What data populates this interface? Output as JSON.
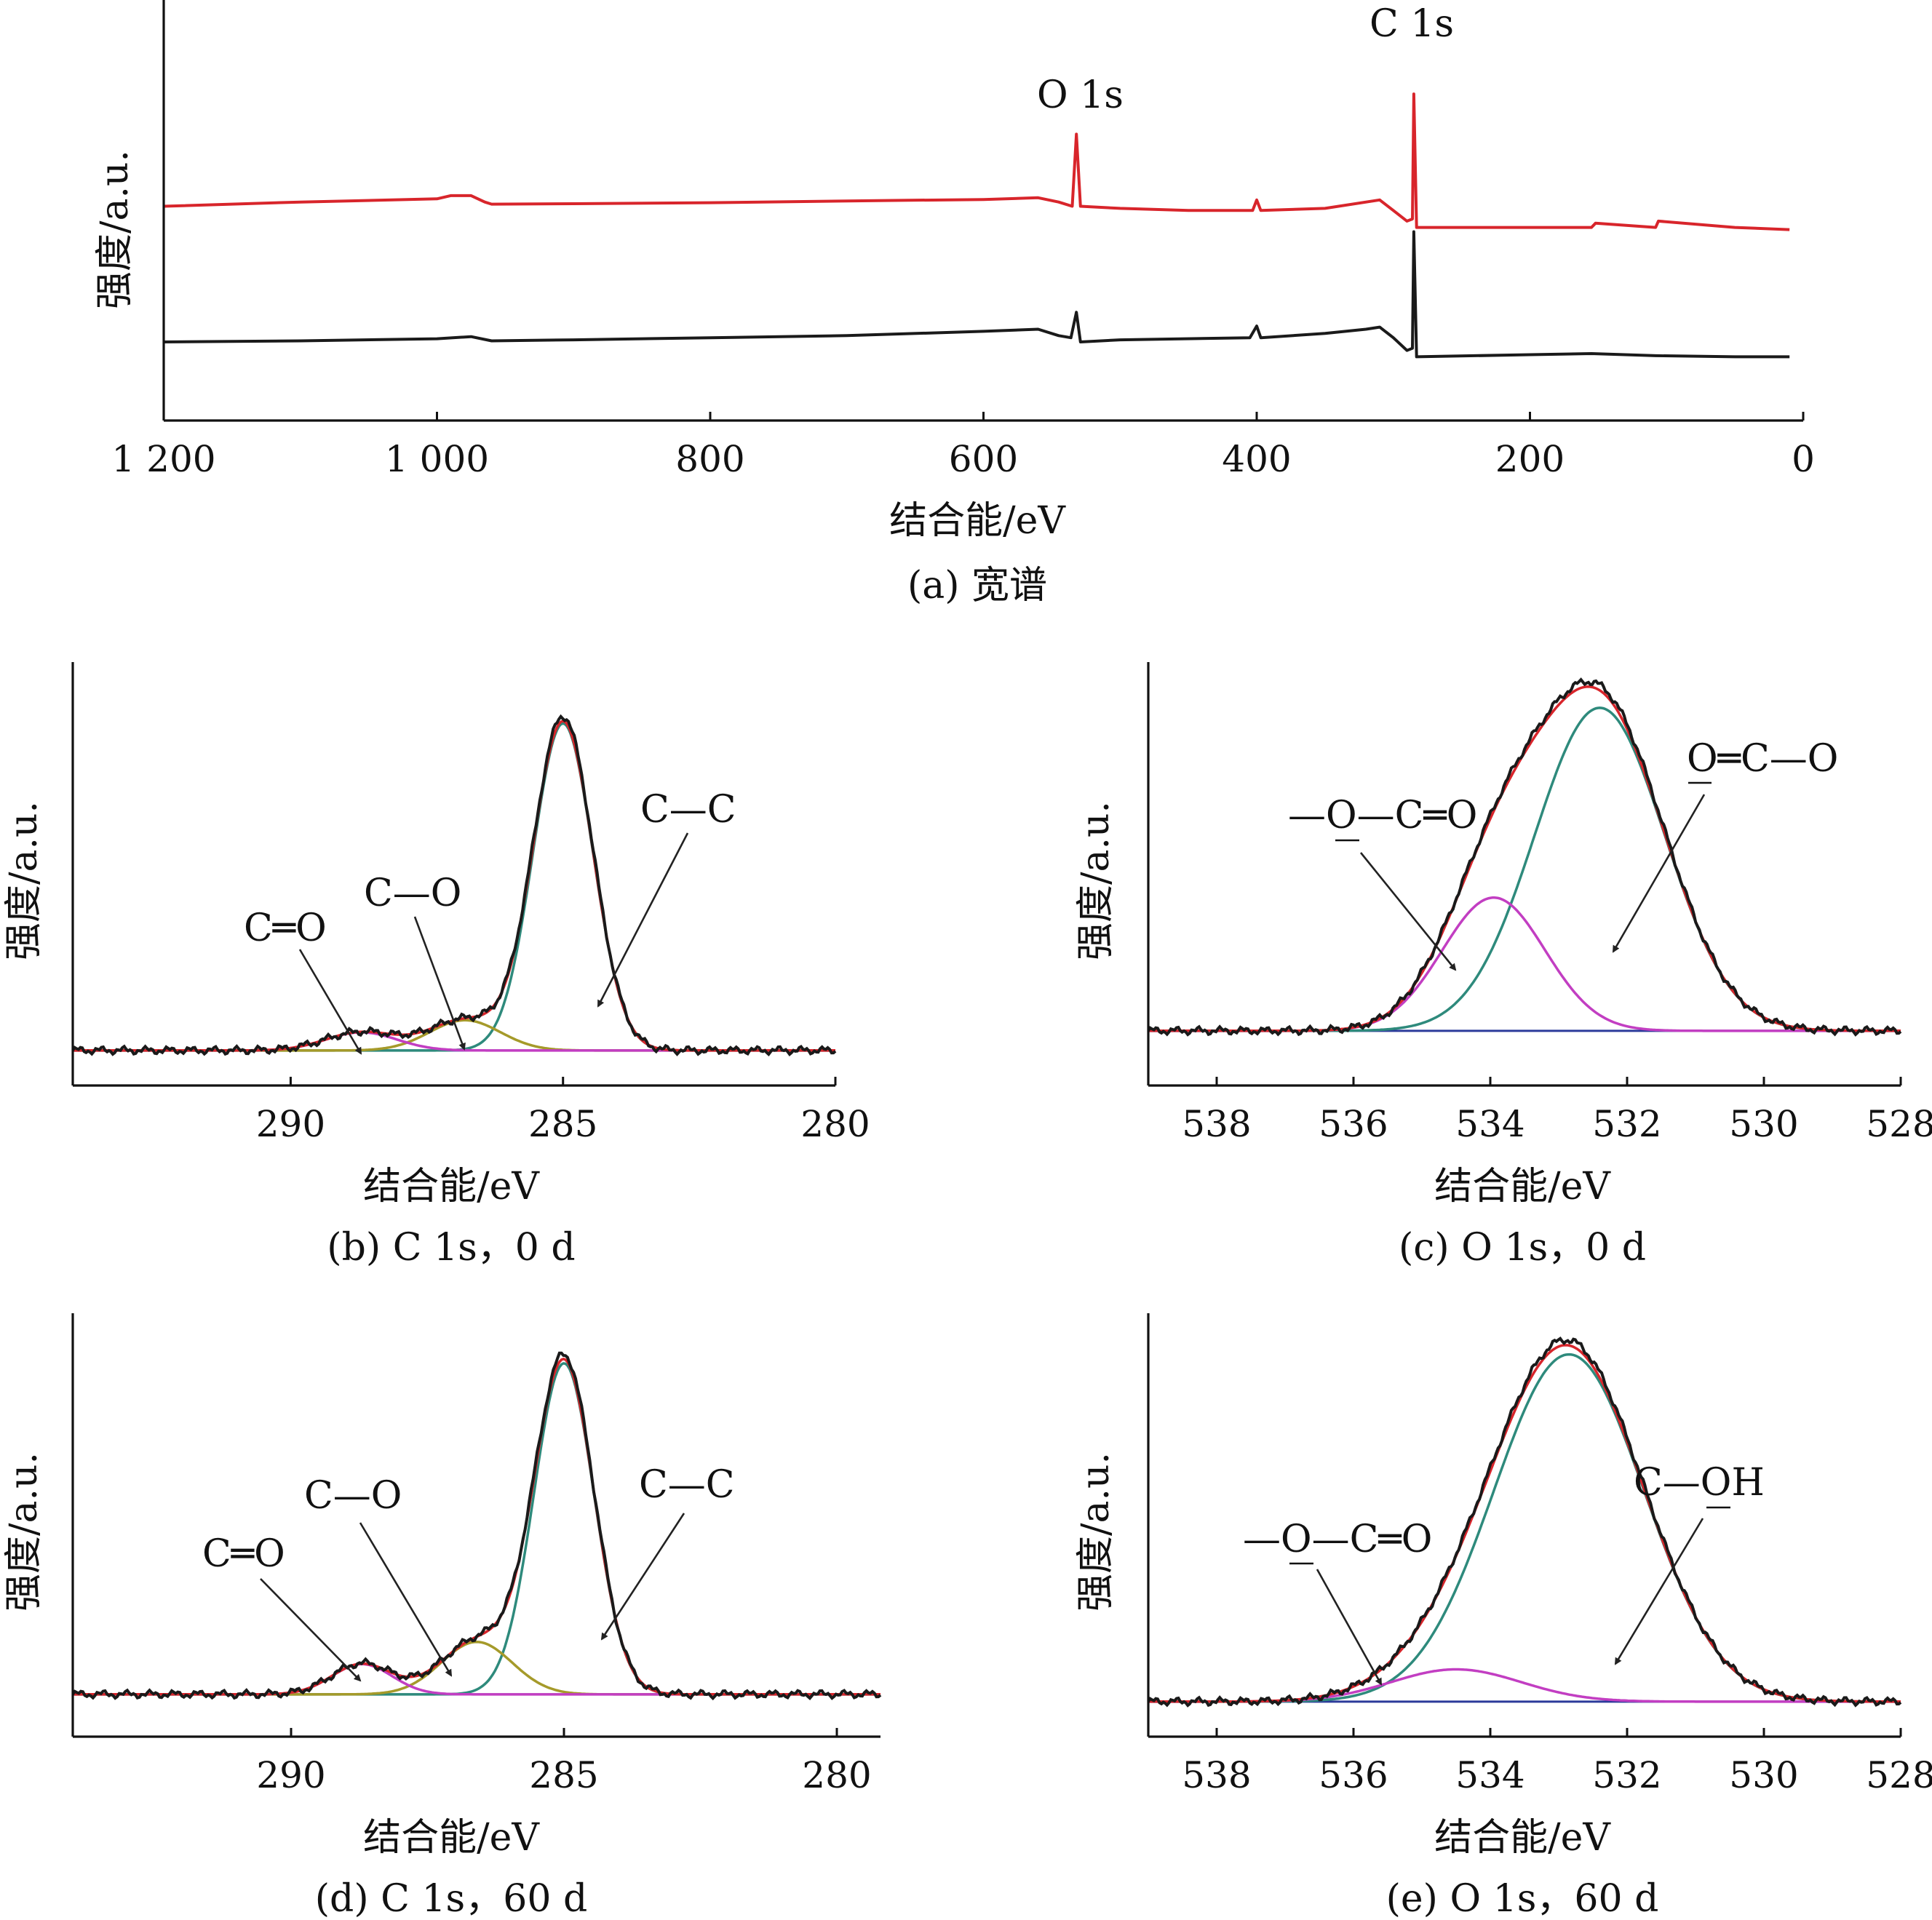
{
  "chart_data": [
    {
      "id": "a",
      "type": "line",
      "caption": "(a) 宽谱",
      "xlabel": "结合能/eV",
      "ylabel": "强度/a.u.",
      "xlim": [
        1200,
        0
      ],
      "x_reversed": true,
      "xticks": [
        1200,
        1000,
        800,
        600,
        400,
        200,
        0
      ],
      "xtick_labels": [
        "1 200",
        "1 000",
        "800",
        "600",
        "400",
        "200",
        "0"
      ],
      "annotations": [
        "O 1s",
        "C 1s"
      ],
      "series": [
        {
          "color": "#d8252b",
          "line": "survey",
          "offset": 0.64,
          "points": [
            [
              1200,
              0.0
            ],
            [
              1100,
              0.02
            ],
            [
              1000,
              0.035
            ],
            [
              990,
              0.05
            ],
            [
              975,
              0.05
            ],
            [
              965,
              0.02
            ],
            [
              960,
              0.01
            ],
            [
              900,
              0.012
            ],
            [
              800,
              0.017
            ],
            [
              700,
              0.025
            ],
            [
              600,
              0.032
            ],
            [
              560,
              0.04
            ],
            [
              545,
              0.02
            ],
            [
              535,
              0.0
            ],
            [
              532,
              0.34
            ],
            [
              529,
              0.0
            ],
            [
              500,
              -0.01
            ],
            [
              450,
              -0.02
            ],
            [
              403,
              -0.02
            ],
            [
              400,
              0.03
            ],
            [
              397,
              -0.02
            ],
            [
              350,
              -0.01
            ],
            [
              310,
              0.03
            ],
            [
              300,
              -0.02
            ],
            [
              290,
              -0.07
            ],
            [
              286,
              -0.06
            ],
            [
              285,
              0.53
            ],
            [
              283,
              -0.1
            ],
            [
              200,
              -0.1
            ],
            [
              155,
              -0.1
            ],
            [
              152,
              -0.08
            ],
            [
              108,
              -0.1
            ],
            [
              106,
              -0.07
            ],
            [
              50,
              -0.1
            ],
            [
              10,
              -0.11
            ]
          ]
        },
        {
          "color": "#1a1a1a",
          "line": "survey",
          "offset": 0.0,
          "points": [
            [
              1200,
              0.0
            ],
            [
              1100,
              0.005
            ],
            [
              1000,
              0.015
            ],
            [
              975,
              0.025
            ],
            [
              960,
              0.005
            ],
            [
              900,
              0.01
            ],
            [
              800,
              0.02
            ],
            [
              700,
              0.03
            ],
            [
              600,
              0.05
            ],
            [
              560,
              0.06
            ],
            [
              545,
              0.03
            ],
            [
              536,
              0.02
            ],
            [
              532,
              0.14
            ],
            [
              529,
              0.0
            ],
            [
              500,
              0.01
            ],
            [
              405,
              0.02
            ],
            [
              400,
              0.075
            ],
            [
              397,
              0.02
            ],
            [
              350,
              0.04
            ],
            [
              320,
              0.06
            ],
            [
              310,
              0.07
            ],
            [
              300,
              0.02
            ],
            [
              290,
              -0.04
            ],
            [
              286,
              -0.03
            ],
            [
              285,
              0.52
            ],
            [
              283,
              -0.07
            ],
            [
              200,
              -0.06
            ],
            [
              155,
              -0.055
            ],
            [
              108,
              -0.065
            ],
            [
              50,
              -0.07
            ],
            [
              10,
              -0.07
            ]
          ]
        }
      ]
    },
    {
      "id": "b",
      "type": "line",
      "caption": "(b) C 1s，0 d",
      "xlabel": "结合能/eV",
      "ylabel": "强度/a.u.",
      "xlim": [
        294,
        280
      ],
      "x_reversed": true,
      "xticks": [
        290,
        285,
        280
      ],
      "xtick_labels": [
        "290",
        "285",
        "280"
      ],
      "baseline": 0.02,
      "components": [
        {
          "name": "C—C",
          "color": "#2e8a7c",
          "center": 285.0,
          "height": 0.81,
          "width": 0.55
        },
        {
          "name": "C—O",
          "color": "#a59a2a",
          "center": 286.8,
          "height": 0.075,
          "width": 0.65
        },
        {
          "name": "C=O",
          "color": "#c23ec2",
          "center": 288.7,
          "height": 0.045,
          "width": 0.65
        }
      ],
      "envelope_color": "#d8252b",
      "raw_color": "#1a1a1a",
      "labels": [
        {
          "text": "C—C",
          "target": 284.8
        },
        {
          "text": "C—O",
          "target": 286.6
        },
        {
          "text": "C═O",
          "target": 288.6
        }
      ]
    },
    {
      "id": "c",
      "type": "line",
      "caption": "(c) O 1s，0 d",
      "xlabel": "结合能/eV",
      "ylabel": "强度/a.u.",
      "xlim": [
        539,
        528
      ],
      "x_reversed": true,
      "xticks": [
        538,
        536,
        534,
        532,
        530,
        528
      ],
      "xtick_labels": [
        "538",
        "536",
        "534",
        "532",
        "530",
        "528"
      ],
      "baseline": 0.02,
      "components": [
        {
          "name": "O═C—O",
          "color": "#2e8a7c",
          "center": 532.4,
          "height": 0.8,
          "width": 0.95
        },
        {
          "name": "—O—C═O",
          "color": "#c23ec2",
          "center": 533.95,
          "height": 0.33,
          "width": 0.75
        }
      ],
      "envelope_color": "#d8252b",
      "raw_color": "#1a1a1a",
      "labels": [
        {
          "text": "O═C—O",
          "target": 532.2,
          "underline_first": "O"
        },
        {
          "text": "—O—C═O",
          "target": 534.3,
          "underline_first": "O"
        }
      ]
    },
    {
      "id": "d",
      "type": "line",
      "caption": "(d) C 1s，60 d",
      "xlabel": "结合能/eV",
      "ylabel": "强度/a.u.",
      "xlim": [
        294,
        279.2
      ],
      "x_reversed": true,
      "xticks": [
        290,
        285,
        280
      ],
      "xtick_labels": [
        "290",
        "285",
        "280"
      ],
      "baseline": 0.02,
      "components": [
        {
          "name": "C—C",
          "color": "#2e8a7c",
          "center": 285.0,
          "height": 0.82,
          "width": 0.55
        },
        {
          "name": "C—O",
          "color": "#a59a2a",
          "center": 286.6,
          "height": 0.13,
          "width": 0.65
        },
        {
          "name": "C═O",
          "color": "#c23ec2",
          "center": 288.7,
          "height": 0.075,
          "width": 0.55
        }
      ],
      "envelope_color": "#d8252b",
      "raw_color": "#1a1a1a",
      "labels": [
        {
          "text": "C—C",
          "target": 284.8
        },
        {
          "text": "C—O",
          "target": 287.0
        },
        {
          "text": "C═O",
          "target": 288.5
        }
      ]
    },
    {
      "id": "e",
      "type": "line",
      "caption": "(e) O 1s，60 d",
      "xlabel": "结合能/eV",
      "ylabel": "强度/a.u.",
      "xlim": [
        539,
        528
      ],
      "x_reversed": true,
      "xticks": [
        538,
        536,
        534,
        532,
        530,
        528
      ],
      "xtick_labels": [
        "538",
        "536",
        "534",
        "532",
        "530",
        "528"
      ],
      "baseline": 0.02,
      "components": [
        {
          "name": "C—OH",
          "color": "#2e8a7c",
          "center": 532.85,
          "height": 0.86,
          "width": 1.1
        },
        {
          "name": "—O—C═O",
          "color": "#c23ec2",
          "center": 534.5,
          "height": 0.08,
          "width": 0.95
        }
      ],
      "envelope_color": "#d8252b",
      "raw_color": "#1a1a1a",
      "labels": [
        {
          "text": "C—OH",
          "target": 532.2,
          "underline_last": "O"
        },
        {
          "text": "—O—C═O",
          "target": 534.6,
          "underline_first": "O"
        }
      ]
    }
  ],
  "texts": {
    "a": {
      "caption": "(a) 宽谱",
      "xlabel": "结合能/eV",
      "ylabel": "强度/a.u.",
      "peak_o": "O 1s",
      "peak_c": "C 1s"
    },
    "b": {
      "caption": "(b) C 1s，0 d",
      "xlabel": "结合能/eV",
      "ylabel": "强度/a.u.",
      "l1": "C—C",
      "l2": "C—O",
      "l3": "C═O"
    },
    "c": {
      "caption": "(c) O 1s，0 d",
      "xlabel": "结合能/eV",
      "ylabel": "强度/a.u.",
      "l1a": "O",
      "l1b": "═C—O",
      "l2a": "—",
      "l2b": "O",
      "l2c": "—C═O"
    },
    "d": {
      "caption": "(d) C 1s，60 d",
      "xlabel": "结合能/eV",
      "ylabel": "强度/a.u.",
      "l1": "C—C",
      "l2": "C—O",
      "l3": "C═O"
    },
    "e": {
      "caption": "(e) O 1s，60 d",
      "xlabel": "结合能/eV",
      "ylabel": "强度/a.u.",
      "l1a": "C—",
      "l1b": "O",
      "l1c": "H",
      "l2a": "—",
      "l2b": "O",
      "l2c": "—C═O"
    }
  }
}
